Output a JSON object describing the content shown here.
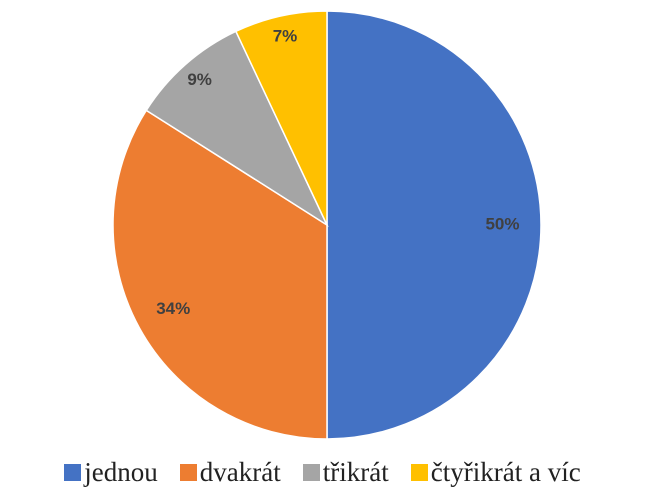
{
  "chart_data": {
    "type": "pie",
    "categories": [
      "jednou",
      "dvakrát",
      "třikrát",
      "čtyřikrát a víc"
    ],
    "values": [
      50,
      34,
      9,
      7
    ],
    "value_labels": [
      "50%",
      "34%",
      "9%",
      "7%"
    ],
    "colors": [
      "#4472c4",
      "#ed7d31",
      "#a5a5a5",
      "#ffc000"
    ],
    "legend": "bottom"
  }
}
